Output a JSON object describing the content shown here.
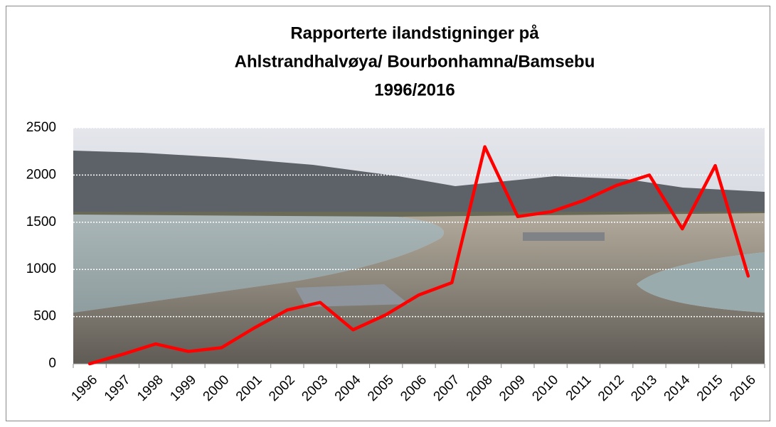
{
  "chart_data": {
    "type": "line",
    "title": [
      "Rapporterte ilandstigninger på",
      "Ahlstrandhalvøya/ Bourbonhamna/Bamsebu",
      "1996/2016"
    ],
    "categories": [
      "1996",
      "1997",
      "1998",
      "1999",
      "2000",
      "2001",
      "2002",
      "2003",
      "2004",
      "2005",
      "2006",
      "2007",
      "2008",
      "2009",
      "2010",
      "2011",
      "2012",
      "2013",
      "2014",
      "2015",
      "2016"
    ],
    "values": [
      0,
      100,
      210,
      130,
      170,
      380,
      570,
      650,
      360,
      520,
      730,
      860,
      2300,
      1560,
      1610,
      1730,
      1890,
      2000,
      1430,
      2100,
      930
    ],
    "color": "#ff0000",
    "ylim": [
      0,
      2500
    ],
    "yticks": [
      0,
      500,
      1000,
      1500,
      2000,
      2500
    ],
    "grid": true
  }
}
